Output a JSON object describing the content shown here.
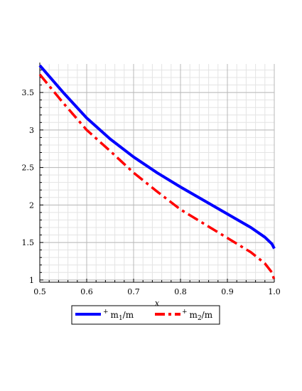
{
  "chart_data": {
    "type": "line",
    "title": "",
    "xlabel": "x",
    "ylabel": "",
    "xlim": [
      0.5,
      1.0
    ],
    "ylim": [
      0.97,
      3.88
    ],
    "grid": true,
    "legend_position": "bottom",
    "x_ticks": [
      0.5,
      0.6,
      0.7,
      0.8,
      0.9,
      1.0
    ],
    "x_tick_labels": [
      "0.5",
      "0.6",
      "0.7",
      "0.8",
      "0.9",
      "1.0"
    ],
    "y_ticks": [
      1,
      1.5,
      2,
      2.5,
      3,
      3.5
    ],
    "y_tick_labels": [
      "1",
      "1.5",
      "2",
      "2.5",
      "3",
      "3.5"
    ],
    "series": [
      {
        "name": "+m1/m",
        "legend": {
          "sup": "+",
          "base": "m",
          "sub": "1",
          "rest": "/m"
        },
        "color": "#0000ff",
        "style": "solid",
        "x": [
          0.5,
          0.55,
          0.6,
          0.65,
          0.7,
          0.75,
          0.8,
          0.85,
          0.9,
          0.95,
          0.98,
          0.995,
          1.0
        ],
        "y": [
          3.86,
          3.5,
          3.16,
          2.88,
          2.64,
          2.43,
          2.24,
          2.06,
          1.88,
          1.7,
          1.57,
          1.48,
          1.42
        ]
      },
      {
        "name": "+m2/m",
        "legend": {
          "sup": "+",
          "base": "m",
          "sub": "2",
          "rest": "/m"
        },
        "color": "#ff0000",
        "style": "dashdot",
        "x": [
          0.5,
          0.55,
          0.6,
          0.65,
          0.7,
          0.75,
          0.8,
          0.85,
          0.9,
          0.95,
          0.98,
          0.995,
          1.0
        ],
        "y": [
          3.74,
          3.36,
          3.0,
          2.72,
          2.43,
          2.18,
          1.94,
          1.75,
          1.56,
          1.37,
          1.22,
          1.1,
          1.0
        ]
      }
    ]
  }
}
